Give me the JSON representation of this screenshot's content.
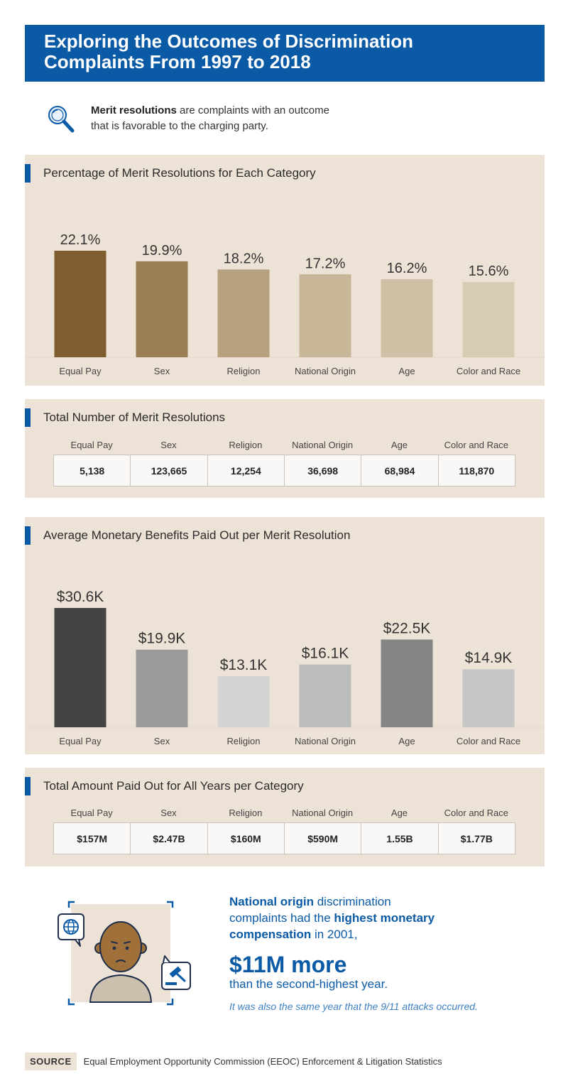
{
  "title": {
    "line1": "Exploring the Outcomes of Discrimination",
    "line2": "Complaints From 1997 to 2018"
  },
  "definition": {
    "icon": "magnifier-icon",
    "term": "Merit resolutions",
    "text_line1": " are complaints with an outcome",
    "text_line2": "that is favorable to the charging party."
  },
  "categories": [
    "Equal Pay",
    "Sex",
    "Religion",
    "National Origin",
    "Age",
    "Color and Race"
  ],
  "chart_data": [
    {
      "type": "bar",
      "title": "Percentage of Merit Resolutions for Each Category",
      "categories": [
        "Equal Pay",
        "Sex",
        "Religion",
        "National Origin",
        "Age",
        "Color and Race"
      ],
      "values": [
        22.1,
        19.9,
        18.2,
        17.2,
        16.2,
        15.6
      ],
      "labels": [
        "22.1%",
        "19.9%",
        "18.2%",
        "17.2%",
        "16.2%",
        "15.6%"
      ],
      "colors": [
        "#7f5d2e",
        "#9a7f57",
        "#b6a07e",
        "#c7b698",
        "#d0c1a6",
        "#d8cbb4"
      ],
      "unit": "%",
      "ylim": [
        0,
        22.1
      ],
      "grid": false,
      "legend": "none"
    },
    {
      "type": "table",
      "title": "Total Number of Merit Resolutions",
      "columns": [
        "Equal Pay",
        "Sex",
        "Religion",
        "National Origin",
        "Age",
        "Color and Race"
      ],
      "values": [
        5138,
        123665,
        12254,
        36698,
        68984,
        118870
      ],
      "labels": [
        "5,138",
        "123,665",
        "12,254",
        "36,698",
        "68,984",
        "118,870"
      ]
    },
    {
      "type": "bar",
      "title": "Average Monetary Benefits Paid Out per Merit Resolution",
      "categories": [
        "Equal Pay",
        "Sex",
        "Religion",
        "National Origin",
        "Age",
        "Color and Race"
      ],
      "values": [
        30.6,
        19.9,
        13.1,
        16.1,
        22.5,
        14.9
      ],
      "labels": [
        "$30.6K",
        "$19.9K",
        "$13.1K",
        "$16.1K",
        "$22.5K",
        "$14.9K"
      ],
      "colors": [
        "#444444",
        "#9b9b9b",
        "#d4d4d4",
        "#bcbcbc",
        "#858585",
        "#c6c6c6"
      ],
      "unit": "$K",
      "ylim": [
        0,
        30.6
      ],
      "grid": false,
      "legend": "none"
    },
    {
      "type": "table",
      "title": "Total Amount Paid Out for All Years per Category",
      "columns": [
        "Equal Pay",
        "Sex",
        "Religion",
        "National Origin",
        "Age",
        "Color and Race"
      ],
      "labels": [
        "$157M",
        "$2.47B",
        "$160M",
        "$590M",
        "1.55B",
        "$1.77B"
      ]
    }
  ],
  "callout": {
    "icons": [
      "globe-icon",
      "gavel-icon",
      "person-icon"
    ],
    "l1_bold": "National origin",
    "l1_rest": " discrimination",
    "l2_start": "complaints had the ",
    "l2_bold": "highest monetary",
    "l3_bold": "compensation",
    "l3_rest": " in 2001,",
    "big": "$11M more",
    "sub": "than the second-highest year.",
    "note": "It was also the same year that the 9/11 attacks occurred."
  },
  "source": {
    "label": "SOURCE",
    "text": "Equal Employment Opportunity Commission (EEOC) Enforcement & Litigation Statistics"
  },
  "colors": {
    "brand_blue": "#0b5aa6",
    "panel_beige": "#ede2d6"
  }
}
